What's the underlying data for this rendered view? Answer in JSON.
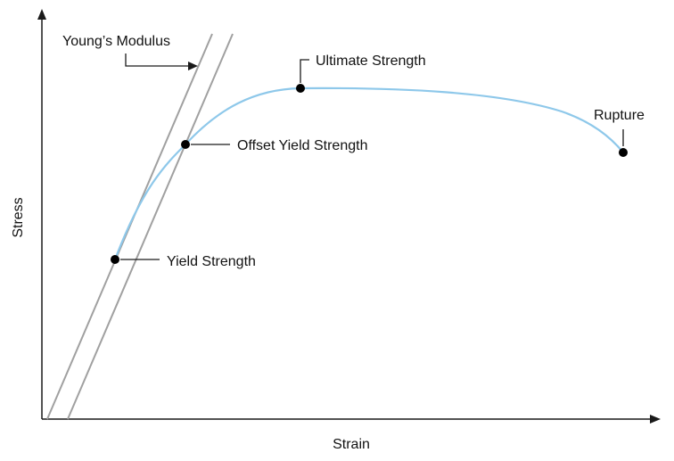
{
  "diagram": {
    "x_axis_label": "Strain",
    "y_axis_label": "Stress",
    "annotations": {
      "youngs_modulus": "Young’s Modulus",
      "ultimate_strength": "Ultimate Strength",
      "offset_yield_strength": "Offset Yield Strength",
      "yield_strength": "Yield Strength",
      "rupture": "Rupture"
    },
    "colors": {
      "curve": "#8ec8ea",
      "guide_lines": "#a0a0a0",
      "axes": "#1a1a1a",
      "points": "#000000"
    }
  }
}
